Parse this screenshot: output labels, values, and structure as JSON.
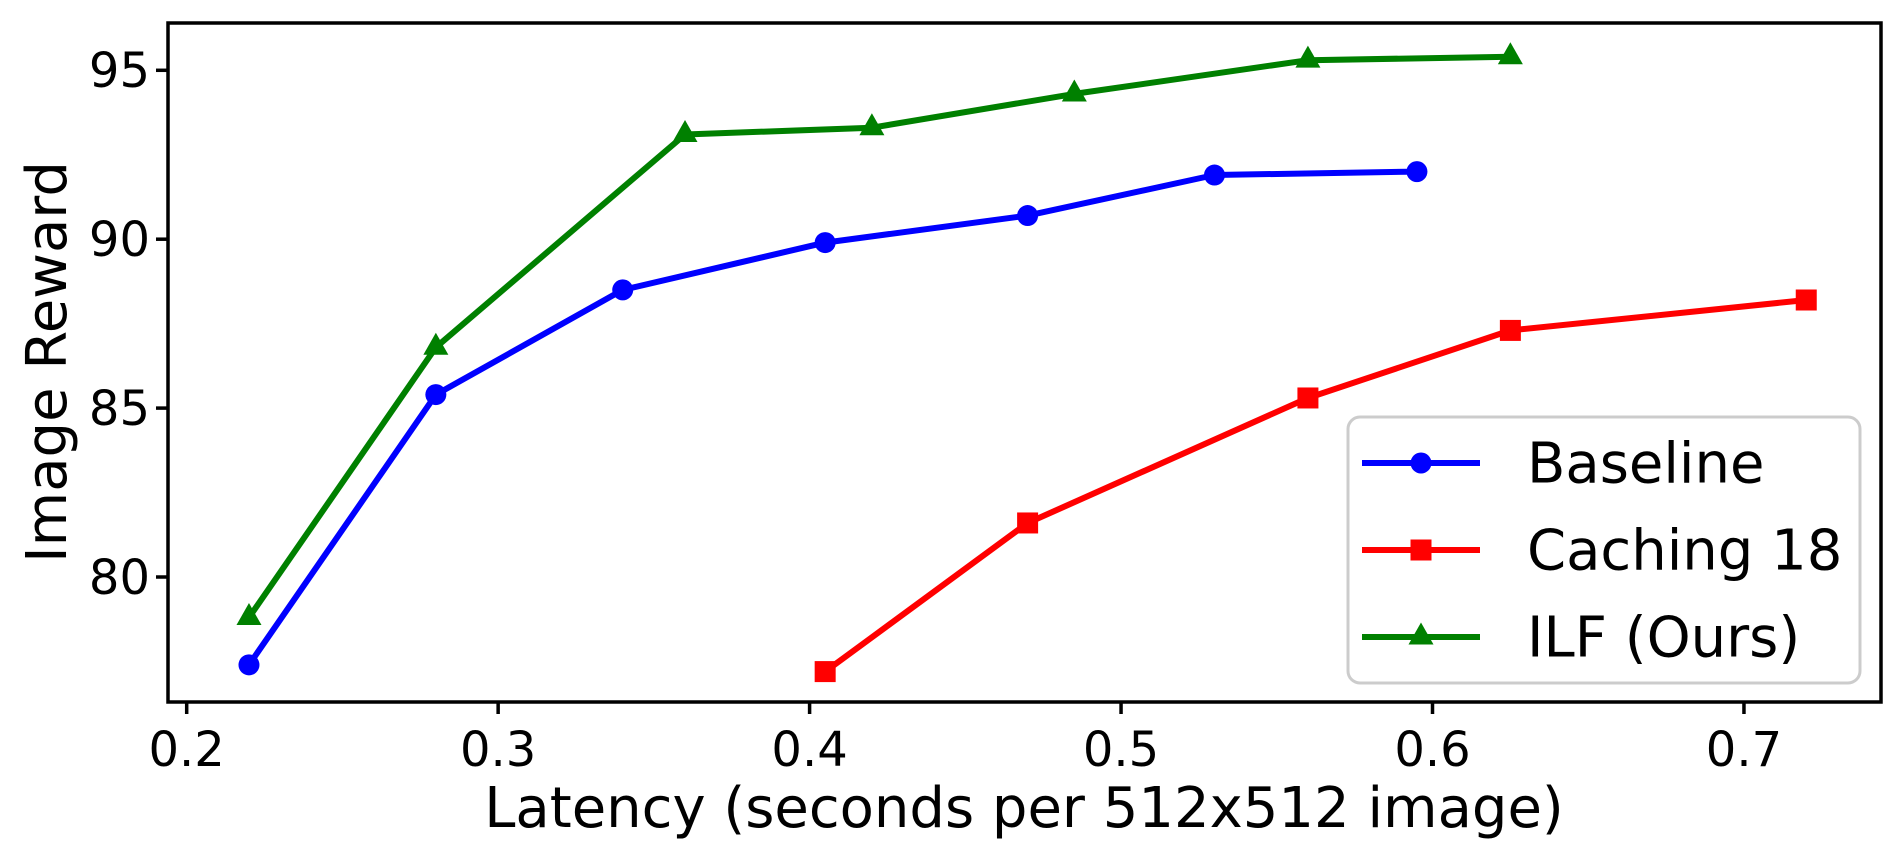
{
  "figure": {
    "background": "#ffffff",
    "text_color": "#000000",
    "spine_color": "#000000"
  },
  "chart_data": {
    "type": "line",
    "title": "",
    "xlabel": "Latency (seconds per 512x512 image)",
    "ylabel": "Image Reward",
    "xlim": [
      0.194,
      0.744
    ],
    "ylim": [
      76.3,
      96.4
    ],
    "grid": false,
    "x_ticks": [
      {
        "value": 0.2,
        "label": "0.2"
      },
      {
        "value": 0.3,
        "label": "0.3"
      },
      {
        "value": 0.4,
        "label": "0.4"
      },
      {
        "value": 0.5,
        "label": "0.5"
      },
      {
        "value": 0.6,
        "label": "0.6"
      },
      {
        "value": 0.7,
        "label": "0.7"
      }
    ],
    "y_ticks": [
      {
        "value": 80,
        "label": "80"
      },
      {
        "value": 85,
        "label": "85"
      },
      {
        "value": 90,
        "label": "90"
      },
      {
        "value": 95,
        "label": "95"
      }
    ],
    "series": [
      {
        "name": "Baseline",
        "color": "#0000ff",
        "marker": "circle",
        "points": [
          [
            0.22,
            77.4
          ],
          [
            0.28,
            85.4
          ],
          [
            0.34,
            88.5
          ],
          [
            0.405,
            89.9
          ],
          [
            0.47,
            90.7
          ],
          [
            0.53,
            91.9
          ],
          [
            0.595,
            92.0
          ]
        ]
      },
      {
        "name": "Caching 18",
        "color": "#ff0000",
        "marker": "square",
        "points": [
          [
            0.405,
            77.2
          ],
          [
            0.47,
            81.6
          ],
          [
            0.56,
            85.3
          ],
          [
            0.625,
            87.3
          ],
          [
            0.72,
            88.2
          ]
        ]
      },
      {
        "name": "ILF (Ours)",
        "color": "#008000",
        "marker": "triangle-up",
        "points": [
          [
            0.22,
            78.8
          ],
          [
            0.28,
            86.8
          ],
          [
            0.36,
            93.1
          ],
          [
            0.42,
            93.3
          ],
          [
            0.485,
            94.3
          ],
          [
            0.56,
            95.3
          ],
          [
            0.625,
            95.4
          ]
        ]
      }
    ],
    "legend": {
      "position": "lower-right",
      "background": "#ffffff",
      "border_color": "#cccccc"
    }
  }
}
